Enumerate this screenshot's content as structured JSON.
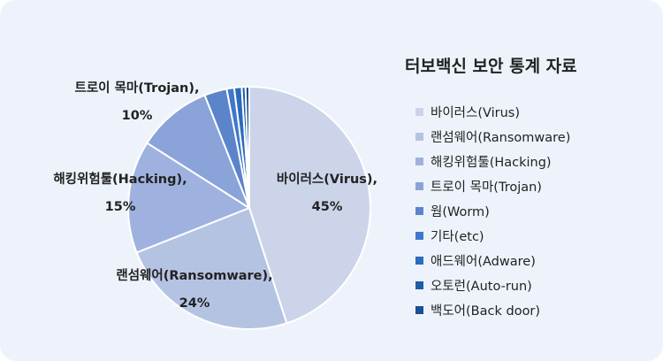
{
  "chart_data": {
    "type": "pie",
    "title": "터보백신 보안 통계 자료",
    "categories": [
      "바이러스(Virus)",
      "랜섬웨어(Ransomware)",
      "해킹위험툴(Hacking)",
      "트로이 목마(Trojan)",
      "웜(Worm)",
      "기타(etc)",
      "애드웨어(Adware)",
      "오토런(Auto-run)",
      "백도어(Back door)"
    ],
    "values": [
      45,
      24,
      15,
      10,
      3,
      1,
      1,
      0.5,
      0.5
    ],
    "colors": [
      "#ccd4ea",
      "#b5c3e3",
      "#9fb2df",
      "#8aa3d9",
      "#5b84cb",
      "#3f78ca",
      "#2c6bbd",
      "#1f5ca7",
      "#1a4f93"
    ],
    "data_labels": [
      {
        "index": 0,
        "name": "바이러스(Virus),",
        "value": "45%"
      },
      {
        "index": 1,
        "name": "랜섬웨어(Ransomware),",
        "value": "24%"
      },
      {
        "index": 2,
        "name": "해킹위험툴(Hacking),",
        "value": "15%"
      },
      {
        "index": 3,
        "name": "트로이 목마(Trojan),",
        "value": "10%"
      }
    ],
    "legend_position": "right"
  }
}
